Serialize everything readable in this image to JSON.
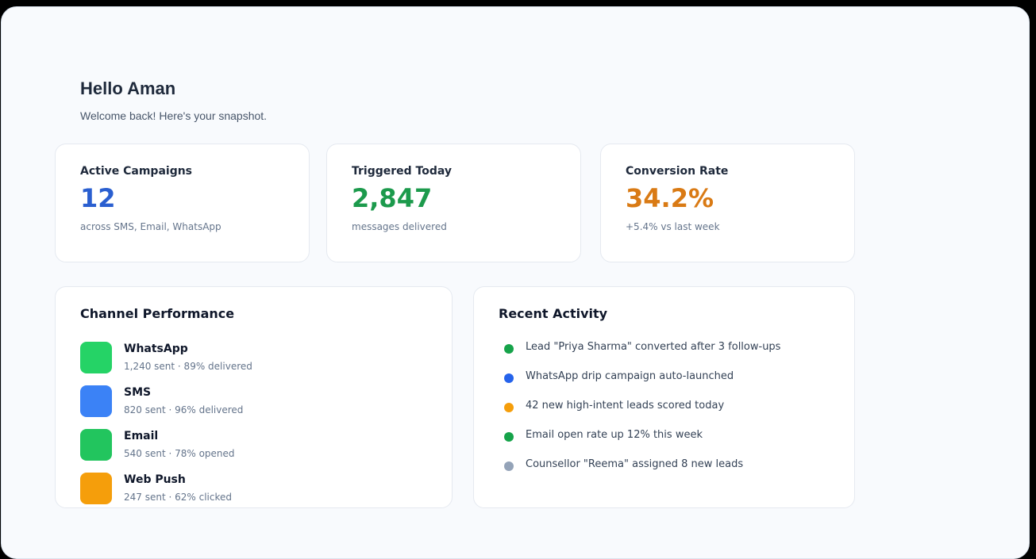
{
  "greeting": {
    "title": "Hello Aman",
    "subtitle": "Welcome back! Here's your snapshot."
  },
  "stats": [
    {
      "label": "Active Campaigns",
      "value": "12",
      "caption": "across SMS, Email, WhatsApp",
      "color": "#2a5fd0"
    },
    {
      "label": "Triggered Today",
      "value": "2,847",
      "caption": "messages delivered",
      "color": "#1c9a4c"
    },
    {
      "label": "Conversion Rate",
      "value": "34.2%",
      "caption": "+5.4% vs last week",
      "color": "#d97a14"
    }
  ],
  "channel_performance": {
    "title": "Channel Performance",
    "items": [
      {
        "name": "WhatsApp",
        "stats": "1,240 sent · 89% delivered",
        "color": "#25d366"
      },
      {
        "name": "SMS",
        "stats": "820 sent · 96% delivered",
        "color": "#3b82f6"
      },
      {
        "name": "Email",
        "stats": "540 sent · 78% opened",
        "color": "#22c55e"
      },
      {
        "name": "Web Push",
        "stats": "247 sent · 62% clicked",
        "color": "#f59e0b"
      }
    ]
  },
  "recent_activity": {
    "title": "Recent Activity",
    "items": [
      {
        "text": "Lead \"Priya Sharma\" converted after 3 follow-ups",
        "color": "#16a34a"
      },
      {
        "text": "WhatsApp drip campaign auto-launched",
        "color": "#2563eb"
      },
      {
        "text": "42 new high-intent leads scored today",
        "color": "#f59e0b"
      },
      {
        "text": "Email open rate up 12% this week",
        "color": "#16a34a"
      },
      {
        "text": "Counsellor \"Reema\" assigned 8 new leads",
        "color": "#94a3b8"
      }
    ]
  }
}
